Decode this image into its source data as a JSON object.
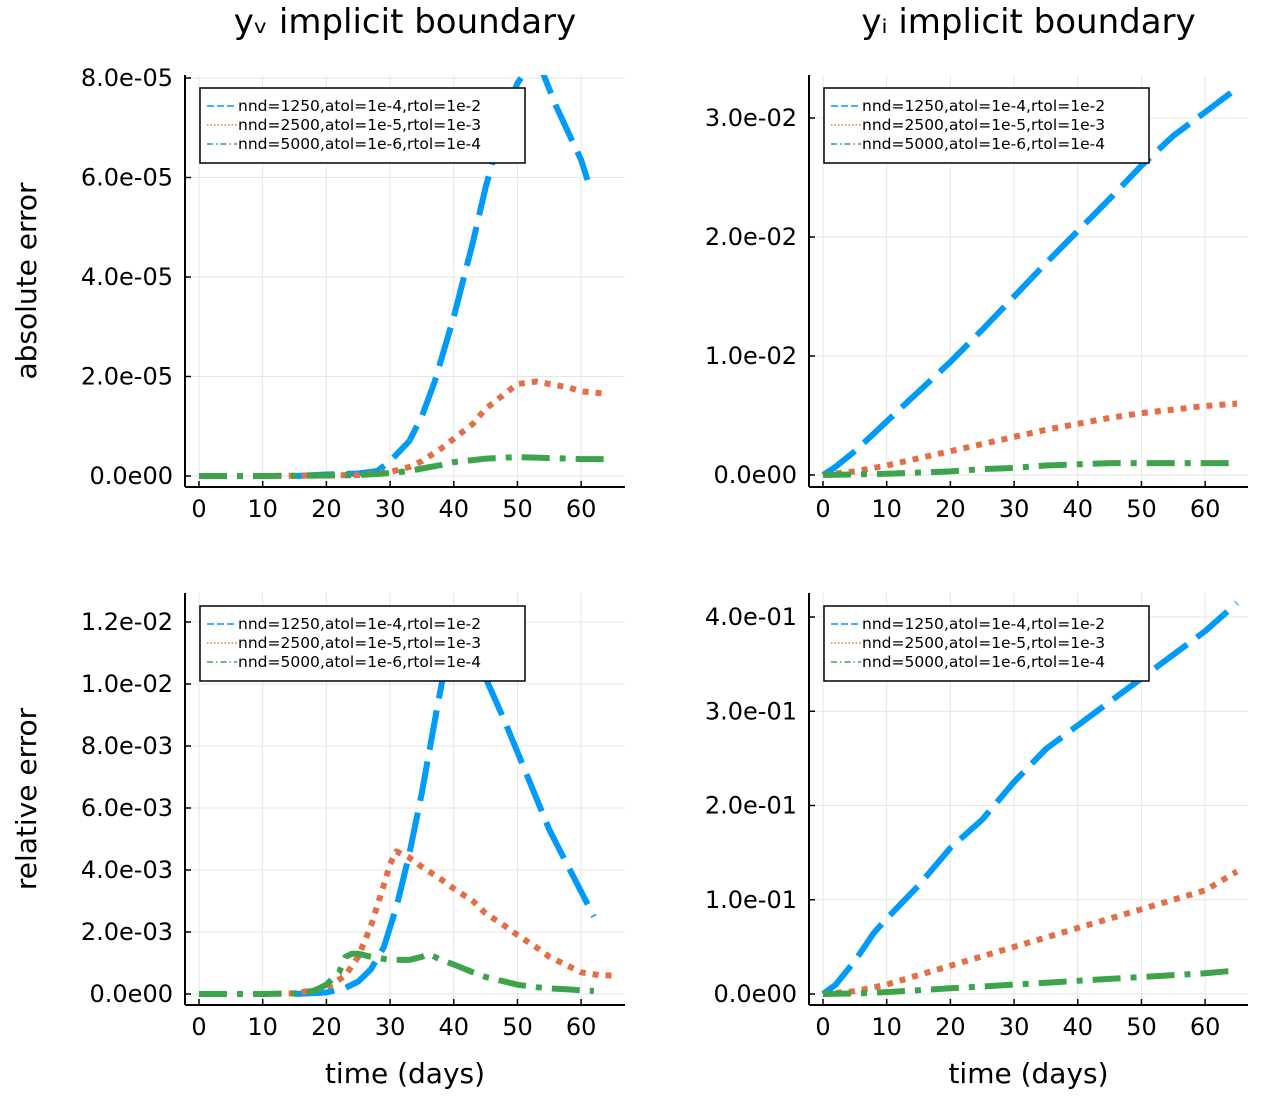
{
  "chart_data": [
    {
      "type": "line",
      "title": "yᵥ implicit boundary",
      "xlabel": "",
      "ylabel": "absolute error",
      "xlim": [
        0,
        65
      ],
      "ylim": [
        0,
        8e-05
      ],
      "xticks": [
        "0",
        "10",
        "20",
        "30",
        "40",
        "50",
        "60"
      ],
      "yticks": [
        "0.0e00",
        "2.0e-05",
        "4.0e-05",
        "6.0e-05",
        "8.0e-05"
      ],
      "legend_position": "top-left",
      "series": [
        {
          "name": "nnd=1250,atol=1e-4,rtol=1e-2",
          "color": "#009af9",
          "style": "dash",
          "x": [
            15,
            20,
            25,
            28,
            30,
            33,
            35,
            37,
            40,
            43,
            45,
            48,
            50,
            52,
            54,
            56,
            58,
            60,
            61
          ],
          "y": [
            0,
            3e-07,
            5e-07,
            1e-06,
            3e-06,
            7e-06,
            1.2e-05,
            1.9e-05,
            3.2e-05,
            4.7e-05,
            5.8e-05,
            7.2e-05,
            7.9e-05,
            8.25e-05,
            8.1e-05,
            7.45e-05,
            6.9e-05,
            6.35e-05,
            5.95e-05
          ]
        },
        {
          "name": "nnd=2500,atol=1e-5,rtol=1e-3",
          "color": "#e26f46",
          "style": "dot",
          "x": [
            10,
            20,
            25,
            30,
            33,
            35,
            38,
            40,
            43,
            45,
            48,
            50,
            53,
            55,
            58,
            60,
            62,
            64
          ],
          "y": [
            0,
            1e-07,
            2e-07,
            8e-07,
            1.8e-06,
            3e-06,
            5.5e-06,
            7.5e-06,
            1.05e-05,
            1.35e-05,
            1.65e-05,
            1.85e-05,
            1.9e-05,
            1.85e-05,
            1.78e-05,
            1.7e-05,
            1.68e-05,
            1.65e-05
          ]
        },
        {
          "name": "nnd=5000,atol=1e-6,rtol=1e-4",
          "color": "#3da44d",
          "style": "dashdot",
          "x": [
            0,
            10,
            20,
            25,
            28,
            30,
            33,
            35,
            38,
            40,
            43,
            45,
            48,
            50,
            53,
            55,
            58,
            60,
            62,
            64
          ],
          "y": [
            0,
            0,
            1e-07,
            2e-07,
            4e-07,
            6e-07,
            1e-06,
            1.5e-06,
            2.2e-06,
            2.8e-06,
            3.2e-06,
            3.5e-06,
            3.7e-06,
            3.8e-06,
            3.7e-06,
            3.6e-06,
            3.5e-06,
            3.4e-06,
            3.4e-06,
            3.4e-06
          ]
        }
      ]
    },
    {
      "type": "line",
      "title": "yᵢ implicit boundary",
      "xlabel": "",
      "ylabel": "",
      "xlim": [
        0,
        65
      ],
      "ylim": [
        0,
        0.03
      ],
      "xticks": [
        "0",
        "10",
        "20",
        "30",
        "40",
        "50",
        "60"
      ],
      "yticks": [
        "0.0e00",
        "1.0e-02",
        "2.0e-02",
        "3.0e-02"
      ],
      "legend_position": "top-left",
      "series": [
        {
          "name": "nnd=1250,atol=1e-4,rtol=1e-2",
          "color": "#009af9",
          "style": "dash",
          "x": [
            0,
            2,
            5,
            8,
            10,
            15,
            20,
            25,
            30,
            35,
            40,
            45,
            50,
            55,
            60,
            65
          ],
          "y": [
            0,
            0.0007,
            0.002,
            0.0035,
            0.0045,
            0.007,
            0.0095,
            0.0122,
            0.015,
            0.0178,
            0.0205,
            0.0232,
            0.026,
            0.0285,
            0.0305,
            0.0325
          ]
        },
        {
          "name": "nnd=2500,atol=1e-5,rtol=1e-3",
          "color": "#e26f46",
          "style": "dot",
          "x": [
            0,
            5,
            10,
            15,
            20,
            25,
            30,
            35,
            40,
            45,
            50,
            55,
            60,
            65
          ],
          "y": [
            0,
            0.0003,
            0.0008,
            0.0014,
            0.002,
            0.0026,
            0.0032,
            0.0038,
            0.0043,
            0.0048,
            0.0052,
            0.0055,
            0.0058,
            0.006
          ]
        },
        {
          "name": "nnd=5000,atol=1e-6,rtol=1e-4",
          "color": "#3da44d",
          "style": "dashdot",
          "x": [
            0,
            5,
            10,
            15,
            20,
            25,
            30,
            35,
            40,
            45,
            50,
            55,
            60,
            65
          ],
          "y": [
            0,
            5e-05,
            0.0001,
            0.0002,
            0.0003,
            0.0005,
            0.0006,
            0.0008,
            0.0009,
            0.001,
            0.001,
            0.001,
            0.001,
            0.001
          ]
        }
      ]
    },
    {
      "type": "line",
      "title": "",
      "xlabel": "time (days)",
      "ylabel": "relative error",
      "xlim": [
        0,
        65
      ],
      "ylim": [
        0,
        0.012
      ],
      "xticks": [
        "0",
        "10",
        "20",
        "30",
        "40",
        "50",
        "60"
      ],
      "yticks": [
        "0.0e00",
        "2.0e-03",
        "4.0e-03",
        "6.0e-03",
        "8.0e-03",
        "1.0e-02",
        "1.2e-02"
      ],
      "legend_position": "top-left",
      "series": [
        {
          "name": "nnd=1250,atol=1e-4,rtol=1e-2",
          "color": "#009af9",
          "style": "dash",
          "x": [
            15,
            20,
            23,
            25,
            27,
            29,
            31,
            33,
            35,
            37,
            39,
            40,
            41,
            43,
            45,
            48,
            50,
            53,
            55,
            58,
            60,
            62
          ],
          "y": [
            0,
            5e-05,
            0.0002,
            0.0004,
            0.0008,
            0.0015,
            0.0028,
            0.0045,
            0.0065,
            0.0088,
            0.011,
            0.0122,
            0.0121,
            0.0112,
            0.0102,
            0.0088,
            0.0078,
            0.0063,
            0.0053,
            0.0041,
            0.0033,
            0.0025
          ]
        },
        {
          "name": "nnd=2500,atol=1e-5,rtol=1e-3",
          "color": "#e26f46",
          "style": "dot",
          "x": [
            10,
            15,
            20,
            23,
            25,
            27,
            29,
            30,
            31,
            33,
            35,
            38,
            40,
            43,
            45,
            48,
            50,
            53,
            55,
            58,
            60,
            63,
            65
          ],
          "y": [
            0,
            2e-05,
            0.0002,
            0.0006,
            0.0012,
            0.0022,
            0.0035,
            0.0042,
            0.0046,
            0.0044,
            0.0041,
            0.0037,
            0.0034,
            0.003,
            0.0026,
            0.0022,
            0.0019,
            0.0015,
            0.0012,
            0.0009,
            0.0007,
            0.0006,
            0.0006
          ]
        },
        {
          "name": "nnd=5000,atol=1e-6,rtol=1e-4",
          "color": "#3da44d",
          "style": "dashdot",
          "x": [
            0,
            10,
            15,
            18,
            20,
            22,
            23,
            24,
            25,
            27,
            30,
            33,
            35,
            36,
            37,
            38,
            40,
            43,
            45,
            48,
            50,
            53,
            55,
            58,
            60,
            62
          ],
          "y": [
            0,
            0,
            2e-05,
            0.0001,
            0.0003,
            0.0007,
            0.0012,
            0.0013,
            0.0013,
            0.0012,
            0.0011,
            0.0011,
            0.0012,
            0.0013,
            0.0012,
            0.0011,
            0.00095,
            0.0007,
            0.00055,
            0.0004,
            0.0003,
            0.00022,
            0.00018,
            0.00015,
            0.00012,
            0.0001
          ]
        }
      ]
    },
    {
      "type": "line",
      "title": "",
      "xlabel": "time (days)",
      "ylabel": "",
      "xlim": [
        0,
        65
      ],
      "ylim": [
        0,
        0.4
      ],
      "xticks": [
        "0",
        "10",
        "20",
        "30",
        "40",
        "50",
        "60"
      ],
      "yticks": [
        "0.0e00",
        "1.0e-01",
        "2.0e-01",
        "3.0e-01",
        "4.0e-01"
      ],
      "legend_position": "top-left",
      "series": [
        {
          "name": "nnd=1250,atol=1e-4,rtol=1e-2",
          "color": "#009af9",
          "style": "dash",
          "x": [
            0,
            2,
            5,
            8,
            10,
            15,
            20,
            25,
            30,
            35,
            40,
            45,
            50,
            55,
            60,
            65
          ],
          "y": [
            0,
            0.01,
            0.035,
            0.065,
            0.08,
            0.115,
            0.155,
            0.185,
            0.225,
            0.26,
            0.285,
            0.31,
            0.335,
            0.36,
            0.385,
            0.415
          ]
        },
        {
          "name": "nnd=2500,atol=1e-5,rtol=1e-3",
          "color": "#e26f46",
          "style": "dot",
          "x": [
            0,
            5,
            10,
            15,
            20,
            25,
            30,
            35,
            40,
            45,
            50,
            55,
            60,
            65
          ],
          "y": [
            0,
            0.003,
            0.01,
            0.02,
            0.03,
            0.04,
            0.05,
            0.06,
            0.07,
            0.08,
            0.09,
            0.1,
            0.11,
            0.13
          ]
        },
        {
          "name": "nnd=5000,atol=1e-6,rtol=1e-4",
          "color": "#3da44d",
          "style": "dashdot",
          "x": [
            0,
            5,
            10,
            15,
            20,
            25,
            30,
            35,
            40,
            45,
            50,
            55,
            60,
            65
          ],
          "y": [
            0,
            0.0005,
            0.002,
            0.004,
            0.006,
            0.008,
            0.01,
            0.012,
            0.014,
            0.016,
            0.018,
            0.02,
            0.022,
            0.025
          ]
        }
      ]
    }
  ]
}
